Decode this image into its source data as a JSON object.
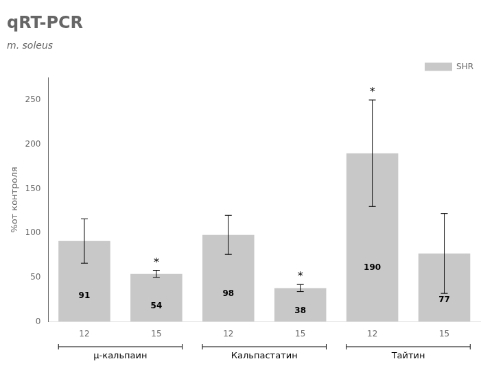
{
  "chart_data": {
    "type": "bar",
    "title": "qRT-PCR",
    "subtitle": "m. soleus",
    "ylabel": "%от контроля",
    "categories": [
      "12",
      "15",
      "12",
      "15",
      "12",
      "15"
    ],
    "groups": [
      "μ-кальпаин",
      "Кальпастатин",
      "Тайтин"
    ],
    "series": [
      {
        "name": "SHR",
        "color": "#c8c8c8",
        "values": [
          91,
          54,
          98,
          38,
          190,
          77
        ],
        "errors": [
          25,
          4,
          22,
          4,
          60,
          45
        ],
        "significant": [
          false,
          true,
          false,
          true,
          true,
          false
        ],
        "significance_label": "*"
      }
    ],
    "ylim": [
      0,
      275
    ],
    "yticks": [
      0,
      50,
      100,
      150,
      200,
      250
    ],
    "grid": false,
    "legend": "upper right",
    "data_labels": true
  }
}
